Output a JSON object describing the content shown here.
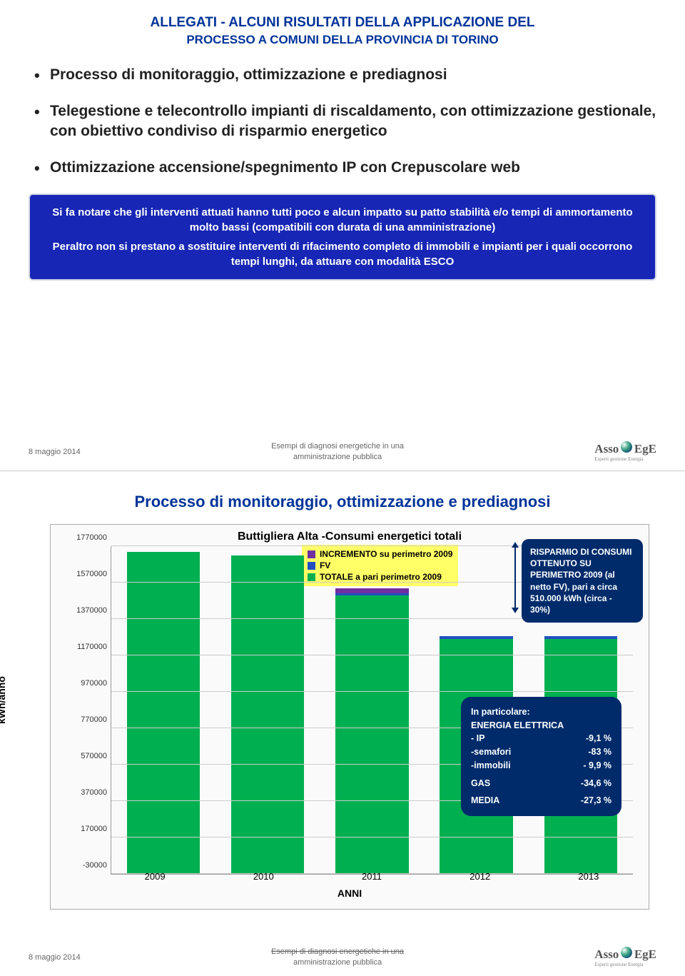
{
  "slide1": {
    "title_l1": "ALLEGATI - ALCUNI RISULTATI DELLA APPLICAZIONE DEL",
    "title_l2": "PROCESSO A COMUNI DELLA PROVINCIA DI TORINO",
    "bullets": {
      "b1": "Processo di monitoraggio, ottimizzazione e prediagnosi",
      "b2": "Telegestione e telecontrollo impianti di riscaldamento, con ottimizzazione gestionale, con obiettivo condiviso di risparmio energetico",
      "b3": "Ottimizzazione accensione/spegnimento IP con Crepuscolare web"
    },
    "notice_p1": "Si fa notare che gli interventi attuati hanno tutti poco e alcun impatto su patto stabilità e/o tempi di ammortamento molto bassi (compatibili con durata di una amministrazione)",
    "notice_p2": "Peraltro non si prestano a sostituire interventi di rifacimento completo di immobili e impianti per i quali occorrono tempi lunghi, da attuare con modalità ESCO"
  },
  "footer": {
    "date": "8 maggio 2014",
    "center_l1": "Esempi di diagnosi energetiche in una",
    "center_l2": "amministrazione pubblica",
    "center_l1_strike": "Esempi di diagnosi energetiche in una",
    "logo_l": "Asso",
    "logo_r": "EgE",
    "logo_sub": "Esperti gestione Energia"
  },
  "slide2": {
    "title": "Processo di monitoraggio, ottimizzazione e prediagnosi",
    "chart": {
      "type": "bar-stacked",
      "title": "Buttigliera Alta -Consumi energetici totali",
      "ylabel": "kWh/anno",
      "xlabel": "ANNI",
      "ymin": -30000,
      "ymax": 1770000,
      "ystep": 200000,
      "yticks": [
        "-30000",
        "170000",
        "370000",
        "570000",
        "770000",
        "970000",
        "1170000",
        "1370000",
        "1570000",
        "1770000"
      ],
      "categories": [
        "2009",
        "2010",
        "2011",
        "2012",
        "2013"
      ],
      "series_colors": {
        "totale": "#00b050",
        "fv": "#2050c0",
        "incremento": "#7030a0"
      },
      "bars": [
        {
          "totale": 1740000,
          "fv": 0,
          "incremento": 0
        },
        {
          "totale": 1720000,
          "fv": 0,
          "incremento": 0
        },
        {
          "totale": 1500000,
          "fv": 10000,
          "incremento": 30000
        },
        {
          "totale": 1260000,
          "fv": 15000,
          "incremento": 0
        },
        {
          "totale": 1260000,
          "fv": 15000,
          "incremento": 0
        }
      ],
      "legend": {
        "l1": "INCREMENTO su perimetro 2009",
        "l2": "FV",
        "l3": "TOTALE a pari perimetro 2009"
      },
      "background_color": "#fafafa",
      "grid_color": "#cccccc"
    },
    "callout_tr": "RISPARMIO DI CONSUMI OTTENUTO SU PERIMETRO 2009 (al netto FV), pari a circa 510.000 kWh (circa - 30%)",
    "callout_br": {
      "head": "In particolare:",
      "r1a": "ENERGIA ELETTRICA",
      "r1b": "",
      "r2a": "- IP",
      "r2b": "-9,1 %",
      "r3a": "-semafori",
      "r3b": "-83 %",
      "r4a": "-immobili",
      "r4b": "- 9,9 %",
      "r5a": "GAS",
      "r5b": "-34,6 %",
      "r6a": "MEDIA",
      "r6b": "-27,3 %"
    }
  }
}
